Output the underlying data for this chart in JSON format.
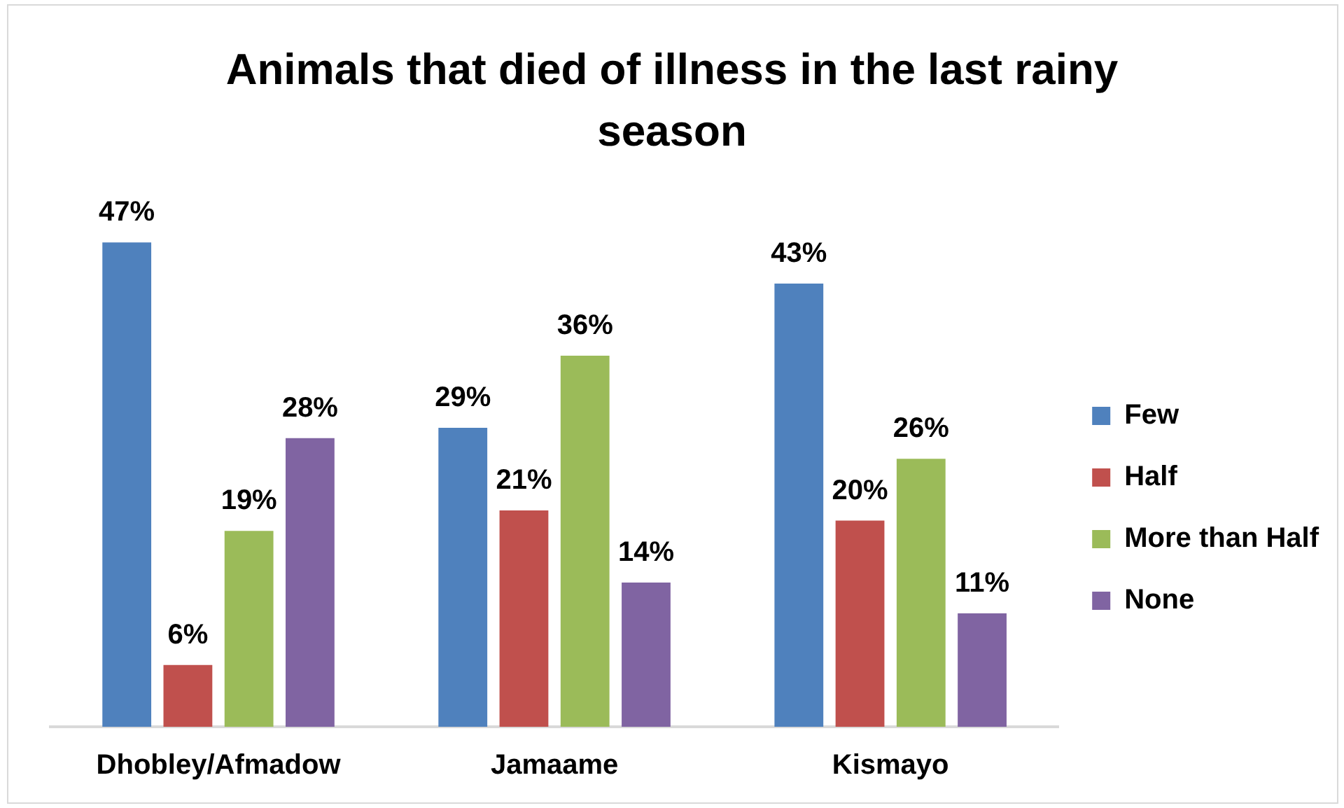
{
  "chart_data": {
    "type": "bar",
    "title": "Animals that died of illness in the last rainy season",
    "categories": [
      "Dhobley/Afmadow",
      "Jamaame",
      "Kismayo"
    ],
    "series": [
      {
        "name": "Few",
        "color": "#4f81bd",
        "values": [
          47,
          29,
          43
        ],
        "value_labels": [
          "47%",
          "29%",
          "43%"
        ]
      },
      {
        "name": "Half",
        "color": "#c0504d",
        "values": [
          6,
          21,
          20
        ],
        "value_labels": [
          "6%",
          "21%",
          "20%"
        ]
      },
      {
        "name": "More than Half",
        "color": "#9bbb59",
        "values": [
          19,
          36,
          26
        ],
        "value_labels": [
          "19%",
          "36%",
          "26%"
        ]
      },
      {
        "name": "None",
        "color": "#8064a2",
        "values": [
          28,
          14,
          11
        ],
        "value_labels": [
          "28%",
          "14%",
          "11%"
        ]
      }
    ],
    "legend": "right"
  }
}
